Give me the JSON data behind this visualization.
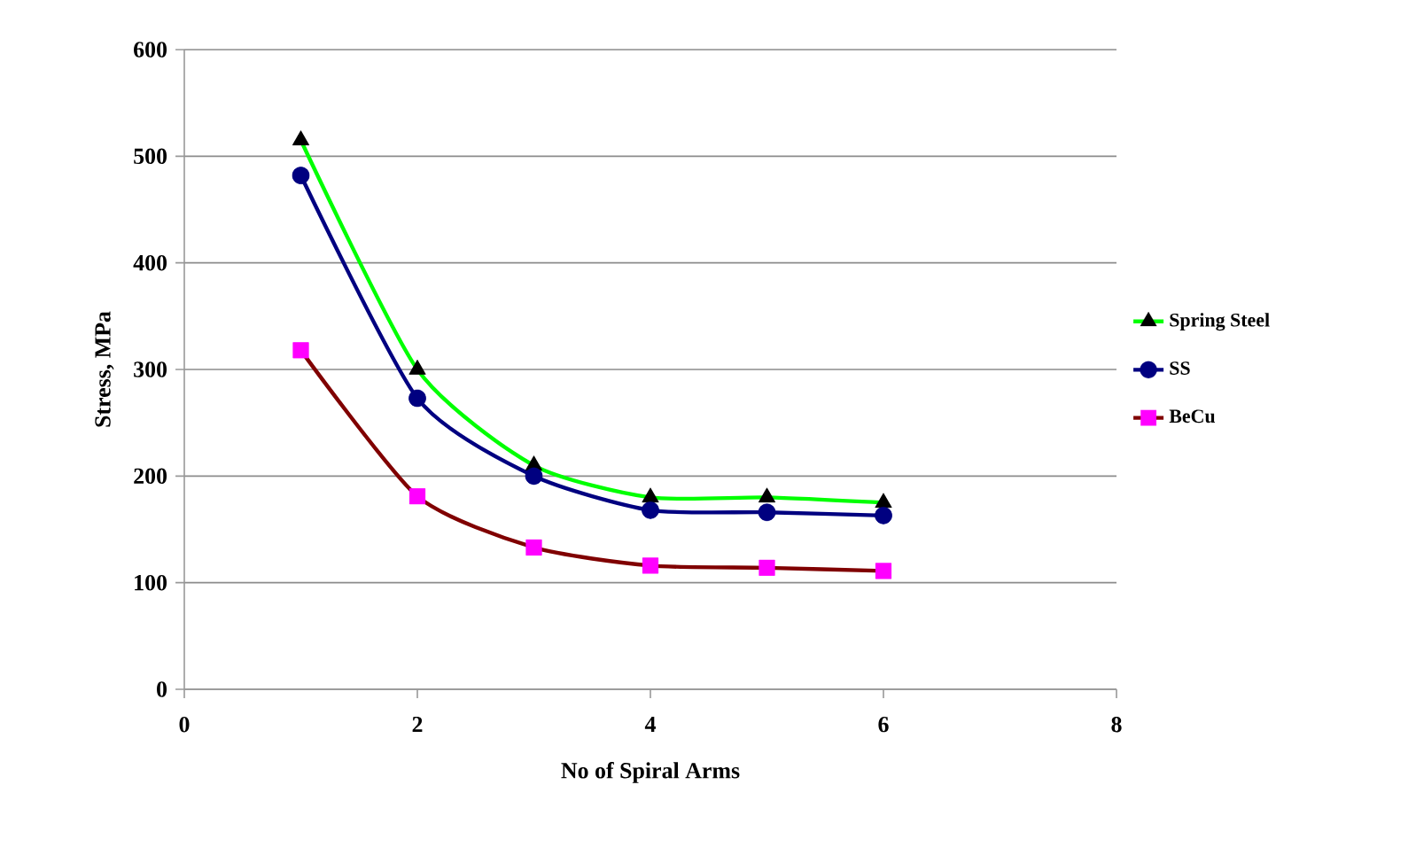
{
  "chart_data": {
    "type": "line",
    "xlabel": "No of Spiral Arms",
    "ylabel": "Stress, MPa",
    "x": [
      1,
      2,
      3,
      4,
      5,
      6
    ],
    "series": [
      {
        "name": "Spring Steel",
        "color": "#00ff00",
        "marker": "triangle",
        "colors": [
          "#000000",
          "#000000",
          "#000000",
          "#000000",
          "#000000",
          "#000000"
        ],
        "values": [
          515,
          300,
          210,
          180,
          180,
          175
        ]
      },
      {
        "name": "SS",
        "color": "#000080",
        "marker": "circle",
        "colors": [
          "#000080",
          "#000080",
          "#000080",
          "#000080",
          "#000080",
          "#000080"
        ],
        "values": [
          482,
          273,
          200,
          168,
          166,
          163
        ]
      },
      {
        "name": "BeCu",
        "color": "#800000",
        "marker": "square",
        "colors": [
          "#ff00ff",
          "#ff00ff",
          "#ff00ff",
          "#ff00ff",
          "#ff00ff",
          "#ff00ff"
        ],
        "values": [
          318,
          181,
          133,
          116,
          114,
          111
        ]
      }
    ],
    "xlim": [
      0,
      8
    ],
    "xticks": [
      0,
      2,
      4,
      6,
      8
    ],
    "ylim": [
      0,
      600
    ],
    "yticks": [
      0,
      100,
      200,
      300,
      400,
      500,
      600
    ],
    "grid": "y",
    "legend": "right",
    "line_style": "solid"
  }
}
